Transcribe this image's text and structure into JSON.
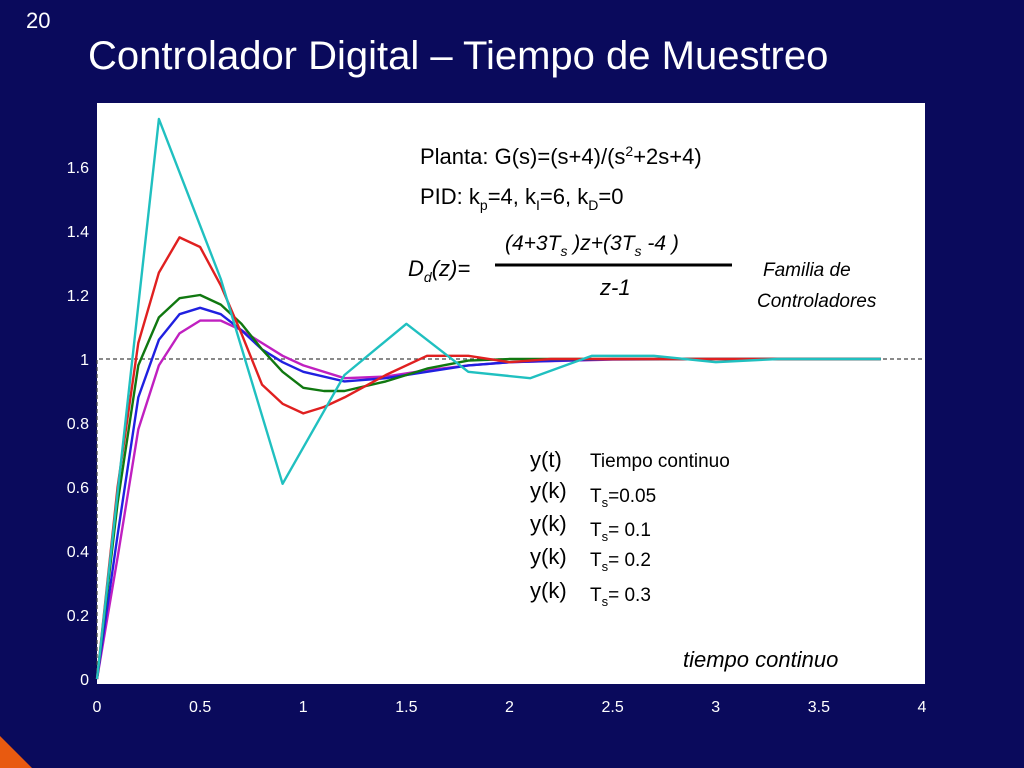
{
  "slide": {
    "number": "20",
    "title": "Controlador Digital – Tiempo de Muestreo"
  },
  "annotations": {
    "plant_prefix": "Planta: G(s)=(s+4)/(s",
    "plant_exp": "2",
    "plant_suffix": "+2s+4)",
    "pid_prefix": "PID: k",
    "pid_sub_p": "p",
    "pid_val_p": "=4,   k",
    "pid_sub_i": "I",
    "pid_val_i": "=6,   k",
    "pid_sub_d": "D",
    "pid_val_d": "=0",
    "dd_main": "D",
    "dd_sub": "d",
    "dd_rest": "(z)=",
    "numerator_a": "(4+3T",
    "numerator_s1": "s",
    "numerator_b": " )z+(3T",
    "numerator_s2": "s",
    "numerator_c": " -4 )",
    "denominator": "z-1",
    "family_line1": "Familia de",
    "family_line2": "Controladores",
    "axis_note": "tiempo continuo"
  },
  "legend": [
    {
      "y": "y(t)",
      "label_main": "Tiempo continuo",
      "label_sub": "",
      "label_rest": ""
    },
    {
      "y": "y(k)",
      "label_main": "T",
      "label_sub": "s",
      "label_rest": "=0.05"
    },
    {
      "y": "y(k)",
      "label_main": "T",
      "label_sub": "s",
      "label_rest": "= 0.1"
    },
    {
      "y": "y(k)",
      "label_main": "T",
      "label_sub": "s",
      "label_rest": "= 0.2"
    },
    {
      "y": "y(k)",
      "label_main": "T",
      "label_sub": "s",
      "label_rest": "= 0.3"
    }
  ],
  "chart_data": {
    "type": "line",
    "xlim": [
      0,
      4
    ],
    "ylim": [
      0,
      1.8
    ],
    "xticks": [
      "0",
      "0.5",
      "1",
      "1.5",
      "2",
      "2.5",
      "3",
      "3.5",
      "4"
    ],
    "yticks": [
      "0",
      "0.2",
      "0.4",
      "0.6",
      "0.8",
      "1",
      "1.2",
      "1.4",
      "1.6"
    ],
    "reference": {
      "value": 1,
      "style": "dashed"
    },
    "series": [
      {
        "color": "#c020c0",
        "x": [
          0,
          0.1,
          0.2,
          0.3,
          0.4,
          0.5,
          0.6,
          0.7,
          0.8,
          0.9,
          1.0,
          1.2,
          1.4,
          1.6,
          1.8,
          2.0,
          2.5,
          3.0,
          3.8
        ],
        "y": [
          0,
          0.38,
          0.78,
          0.98,
          1.08,
          1.12,
          1.12,
          1.09,
          1.05,
          1.01,
          0.98,
          0.94,
          0.945,
          0.965,
          0.98,
          0.99,
          0.998,
          1.0,
          1.0
        ]
      },
      {
        "color": "#2020e0",
        "x": [
          0,
          0.1,
          0.2,
          0.3,
          0.4,
          0.5,
          0.6,
          0.7,
          0.8,
          0.9,
          1.0,
          1.2,
          1.4,
          1.6,
          1.8,
          2.0,
          2.5,
          3.0,
          3.8
        ],
        "y": [
          0,
          0.45,
          0.88,
          1.06,
          1.14,
          1.16,
          1.14,
          1.09,
          1.03,
          0.99,
          0.96,
          0.93,
          0.94,
          0.96,
          0.98,
          0.99,
          1.0,
          1.0,
          1.0
        ]
      },
      {
        "color": "#107810",
        "x": [
          0,
          0.1,
          0.2,
          0.3,
          0.4,
          0.5,
          0.6,
          0.7,
          0.8,
          0.9,
          1.0,
          1.1,
          1.2,
          1.4,
          1.6,
          1.8,
          2.0,
          2.2,
          2.5,
          3.0,
          3.8
        ],
        "y": [
          0,
          0.55,
          0.98,
          1.13,
          1.19,
          1.2,
          1.17,
          1.11,
          1.03,
          0.96,
          0.91,
          0.9,
          0.9,
          0.93,
          0.97,
          0.995,
          1.0,
          1.0,
          1.0,
          1.0,
          1.0
        ]
      },
      {
        "color": "#e02020",
        "x": [
          0,
          0.1,
          0.2,
          0.3,
          0.4,
          0.5,
          0.6,
          0.7,
          0.8,
          0.9,
          1.0,
          1.1,
          1.2,
          1.4,
          1.6,
          1.8,
          2.0,
          2.2,
          2.5,
          3.0,
          3.8
        ],
        "y": [
          0,
          0.6,
          1.05,
          1.27,
          1.38,
          1.35,
          1.23,
          1.08,
          0.92,
          0.86,
          0.83,
          0.85,
          0.88,
          0.95,
          1.01,
          1.01,
          0.99,
          1.0,
          1.0,
          1.0,
          1.0
        ]
      },
      {
        "color": "#20c0c0",
        "x": [
          0,
          0.3,
          0.6,
          0.9,
          1.2,
          1.5,
          1.8,
          2.1,
          2.4,
          2.7,
          3.0,
          3.3,
          3.6,
          3.8
        ],
        "y": [
          0,
          1.75,
          1.25,
          0.61,
          0.95,
          1.11,
          0.96,
          0.94,
          1.01,
          1.01,
          0.99,
          1.0,
          1.0,
          1.0
        ]
      }
    ]
  }
}
